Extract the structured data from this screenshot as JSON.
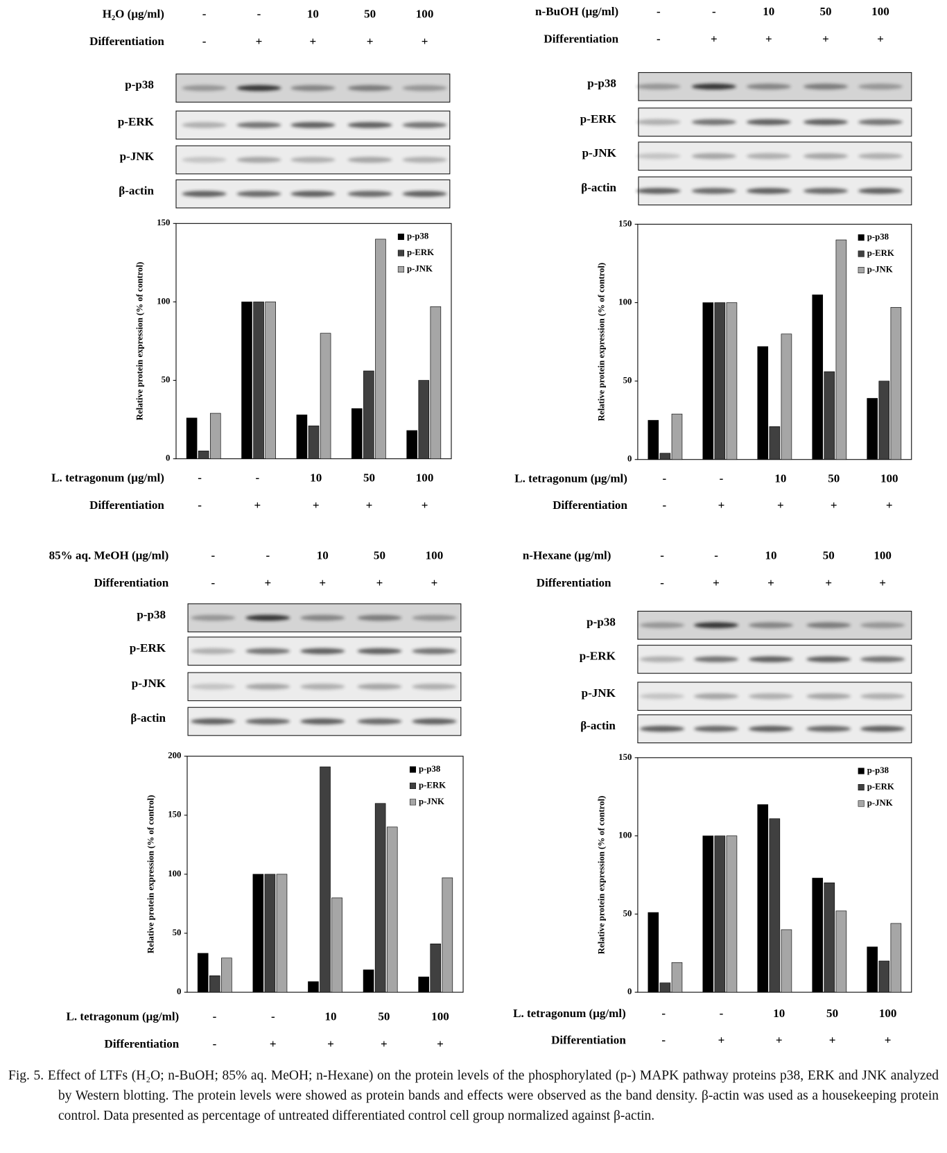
{
  "chart_data": [
    {
      "type": "bar",
      "treatment_label": "H₂O (μg/ml)",
      "differentiation_label": "Differentiation",
      "differentiation_values": [
        "-",
        "+",
        "+",
        "+",
        "+"
      ],
      "blots": [
        "p-p38",
        "p-ERK",
        "p-JNK",
        "β-actin"
      ],
      "ylabel": "Relative protein expression (% of control)",
      "x_label": "L. tetragonum (μg/ml)",
      "categories": [
        "-",
        "-",
        "10",
        "50",
        "100"
      ],
      "ylim": [
        0,
        150
      ],
      "yticks": [
        0,
        50,
        100,
        150
      ],
      "series": [
        {
          "name": "p-p38",
          "color": "#000000",
          "values": [
            26,
            100,
            28,
            32,
            18
          ]
        },
        {
          "name": "p-ERK",
          "color": "#404040",
          "values": [
            5,
            100,
            21,
            56,
            50
          ]
        },
        {
          "name": "p-JNK",
          "color": "#a6a6a6",
          "values": [
            29,
            100,
            80,
            140,
            97
          ]
        }
      ]
    },
    {
      "type": "bar",
      "treatment_label": "n-BuOH (μg/ml)",
      "differentiation_label": "Differentiation",
      "differentiation_values": [
        "-",
        "+",
        "+",
        "+",
        "+"
      ],
      "blots": [
        "p-p38",
        "p-ERK",
        "p-JNK",
        "β-actin"
      ],
      "ylabel": "Relative protein expression (% of control)",
      "x_label": "L. tetragonum (μg/ml)",
      "categories": [
        "-",
        "-",
        "10",
        "50",
        "100"
      ],
      "ylim": [
        0,
        150
      ],
      "yticks": [
        0,
        50,
        100,
        150
      ],
      "series": [
        {
          "name": "p-p38",
          "color": "#000000",
          "values": [
            25,
            100,
            72,
            105,
            39
          ]
        },
        {
          "name": "p-ERK",
          "color": "#404040",
          "values": [
            4,
            100,
            21,
            56,
            50
          ]
        },
        {
          "name": "p-JNK",
          "color": "#a6a6a6",
          "values": [
            29,
            100,
            80,
            140,
            97
          ]
        }
      ]
    },
    {
      "type": "bar",
      "treatment_label": "85% aq. MeOH (μg/ml)",
      "differentiation_label": "Differentiation",
      "differentiation_values": [
        "-",
        "+",
        "+",
        "+",
        "+"
      ],
      "blots": [
        "p-p38",
        "p-ERK",
        "p-JNK",
        "β-actin"
      ],
      "ylabel": "Relative protein expression (% of control)",
      "x_label": "L. tetragonum (μg/ml)",
      "categories": [
        "-",
        "-",
        "10",
        "50",
        "100"
      ],
      "ylim": [
        0,
        200
      ],
      "yticks": [
        0,
        50,
        100,
        150,
        200
      ],
      "series": [
        {
          "name": "p-p38",
          "color": "#000000",
          "values": [
            33,
            100,
            9,
            19,
            13
          ]
        },
        {
          "name": "p-ERK",
          "color": "#404040",
          "values": [
            14,
            100,
            191,
            160,
            41
          ]
        },
        {
          "name": "p-JNK",
          "color": "#a6a6a6",
          "values": [
            29,
            100,
            80,
            140,
            97
          ]
        }
      ]
    },
    {
      "type": "bar",
      "treatment_label": "n-Hexane (μg/ml)",
      "differentiation_label": "Differentiation",
      "differentiation_values": [
        "-",
        "+",
        "+",
        "+",
        "+"
      ],
      "blots": [
        "p-p38",
        "p-ERK",
        "p-JNK",
        "β-actin"
      ],
      "ylabel": "Relative protein expression (% of control)",
      "x_label": "L. tetragonum (μg/ml)",
      "categories": [
        "-",
        "-",
        "10",
        "50",
        "100"
      ],
      "ylim": [
        0,
        150
      ],
      "yticks": [
        0,
        50,
        100,
        150
      ],
      "series": [
        {
          "name": "p-p38",
          "color": "#000000",
          "values": [
            51,
            100,
            120,
            73,
            29
          ]
        },
        {
          "name": "p-ERK",
          "color": "#404040",
          "values": [
            6,
            100,
            111,
            70,
            20
          ]
        },
        {
          "name": "p-JNK",
          "color": "#a6a6a6",
          "values": [
            19,
            100,
            40,
            52,
            44
          ]
        }
      ]
    }
  ],
  "caption": "Fig. 5. Effect of LTFs (H₂O; n-BuOH; 85% aq. MeOH; n-Hexane) on the protein levels of the phosphorylated (p-) MAPK pathway proteins p38, ERK and JNK analyzed by Western blotting. The protein levels were showed as protein bands and effects were observed as the band density. β-actin was used as a housekeeping protein control. Data presented as percentage of untreated differentiated control cell group normalized against β-actin."
}
